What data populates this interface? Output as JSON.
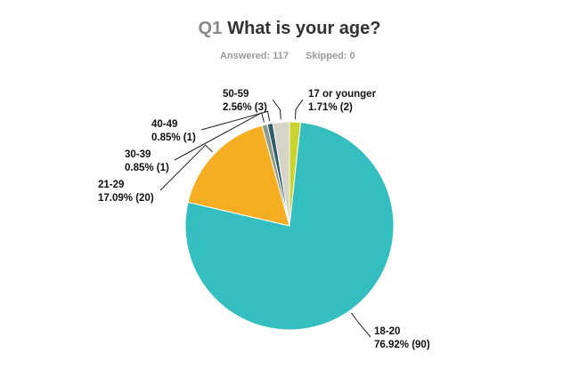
{
  "chart_data": {
    "type": "pie",
    "question_number": "Q1",
    "title": "What is your age?",
    "answered": "Answered: 117",
    "skipped": "Skipped: 0",
    "categories": [
      "17 or younger",
      "18-20",
      "21-29",
      "30-39",
      "40-49",
      "50-59"
    ],
    "values": [
      1.71,
      76.92,
      17.09,
      0.85,
      0.85,
      2.56
    ],
    "value_labels": [
      "1.71% (2)",
      "76.92% (90)",
      "17.09% (20)",
      "0.85% (1)",
      "0.85% (1)",
      "2.56% (3)"
    ],
    "colors": [
      "#c9d42f",
      "#34bec0",
      "#f5ad22",
      "#8f9a87",
      "#2f5c6c",
      "#d6d4c6"
    ]
  }
}
